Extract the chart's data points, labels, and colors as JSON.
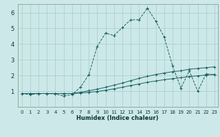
{
  "xlabel": "Humidex (Indice chaleur)",
  "bg_color": "#cce8e8",
  "grid_color": "#a8cccc",
  "line_color": "#1a6060",
  "xlim_min": -0.5,
  "xlim_max": 23.4,
  "ylim_min": 0.0,
  "ylim_max": 6.55,
  "xticks": [
    0,
    1,
    2,
    3,
    4,
    5,
    6,
    7,
    8,
    9,
    10,
    11,
    12,
    13,
    14,
    15,
    16,
    17,
    18,
    19,
    20,
    21,
    22,
    23
  ],
  "yticks": [
    1,
    2,
    3,
    4,
    5,
    6
  ],
  "line1_x": [
    0,
    1,
    2,
    3,
    4,
    5,
    6,
    7,
    8,
    9,
    10,
    11,
    12,
    13,
    14,
    15,
    16,
    17,
    18,
    19,
    20,
    21,
    22,
    23
  ],
  "line1_y": [
    0.85,
    0.78,
    0.85,
    0.85,
    0.82,
    0.7,
    0.78,
    1.25,
    2.05,
    3.85,
    4.7,
    4.55,
    5.05,
    5.55,
    5.55,
    6.3,
    5.45,
    4.45,
    2.6,
    1.2,
    2.3,
    1.0,
    2.1,
    2.05
  ],
  "line2_x": [
    0,
    1,
    2,
    3,
    4,
    5,
    6,
    7,
    8,
    9,
    10,
    11,
    12,
    13,
    14,
    15,
    16,
    17,
    18,
    19,
    20,
    21,
    22,
    23
  ],
  "line2_y": [
    0.85,
    0.85,
    0.85,
    0.85,
    0.85,
    0.85,
    0.85,
    0.93,
    1.03,
    1.13,
    1.25,
    1.38,
    1.52,
    1.67,
    1.82,
    1.95,
    2.06,
    2.16,
    2.24,
    2.3,
    2.4,
    2.45,
    2.5,
    2.55
  ],
  "line3_x": [
    0,
    1,
    2,
    3,
    4,
    5,
    6,
    7,
    8,
    9,
    10,
    11,
    12,
    13,
    14,
    15,
    16,
    17,
    18,
    19,
    20,
    21,
    22,
    23
  ],
  "line3_y": [
    0.85,
    0.85,
    0.85,
    0.85,
    0.85,
    0.85,
    0.85,
    0.88,
    0.93,
    0.98,
    1.06,
    1.15,
    1.25,
    1.36,
    1.46,
    1.57,
    1.65,
    1.73,
    1.8,
    1.86,
    1.93,
    1.98,
    2.03,
    2.07
  ],
  "xlabel_fontsize": 6.0,
  "tick_fontsize_x": 5.0,
  "tick_fontsize_y": 6.0
}
